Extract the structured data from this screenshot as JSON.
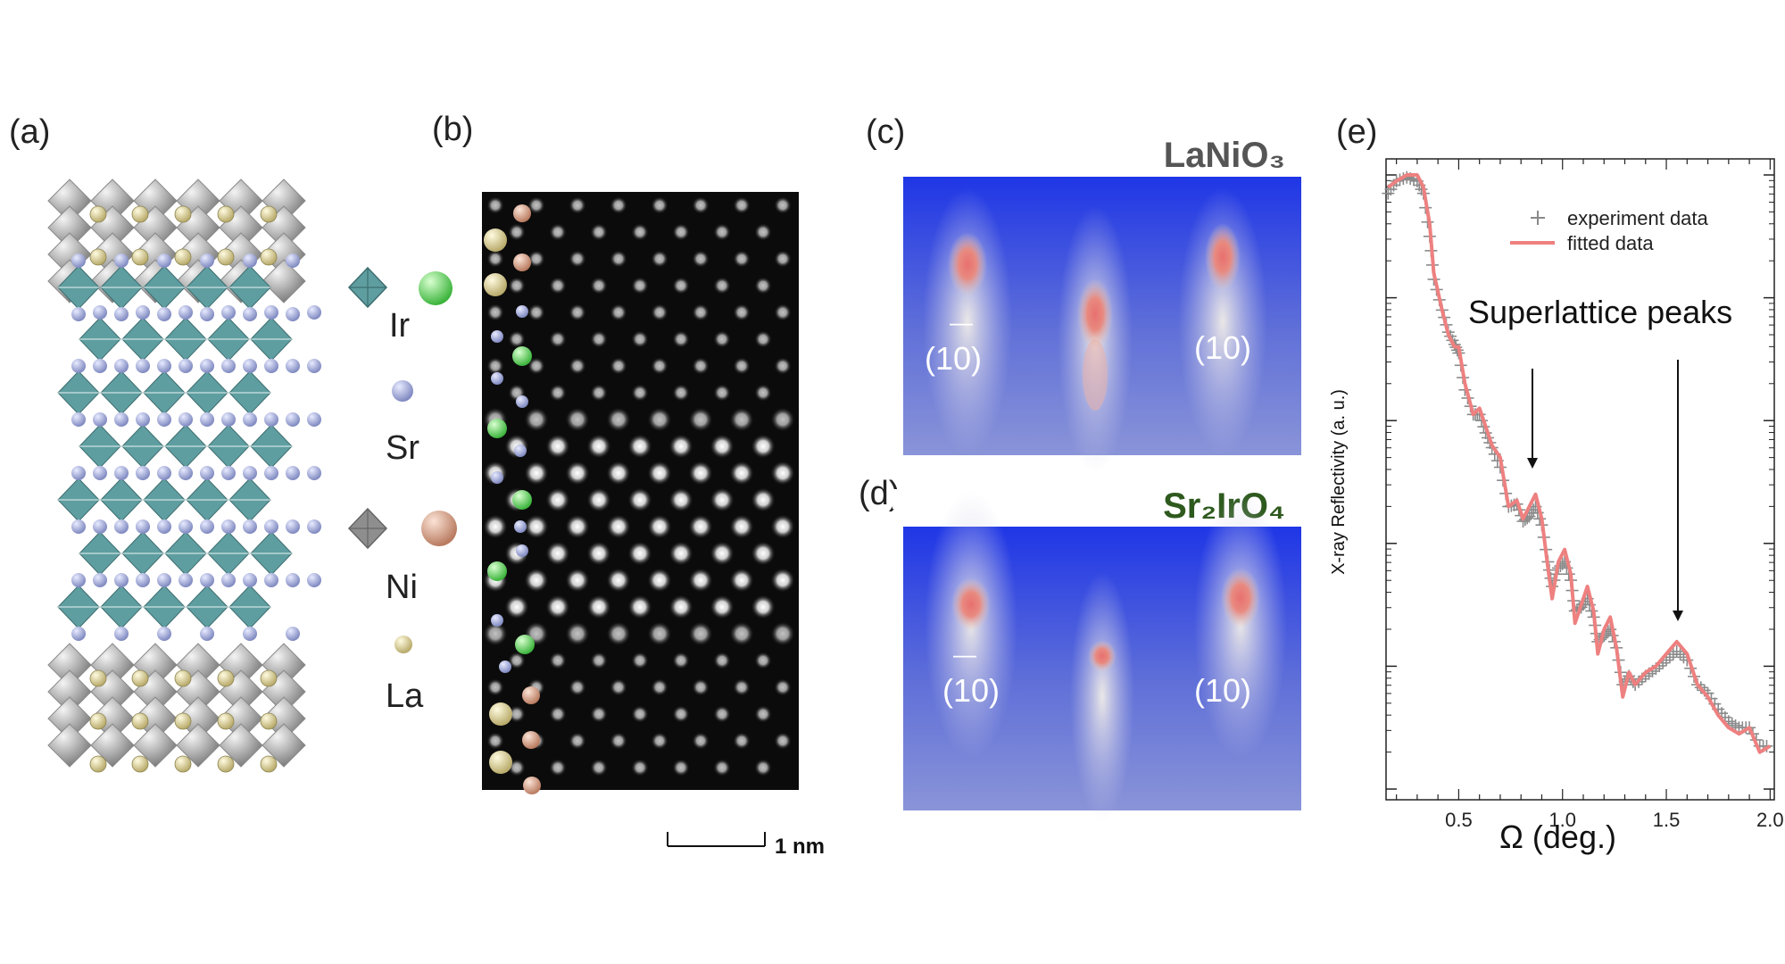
{
  "panels": {
    "a": {
      "label": "(a)"
    },
    "b": {
      "label": "(b)",
      "scalebar": "1 nm"
    },
    "c": {
      "label": "(c)",
      "material": "LaNiO₃",
      "miller_left": "(10)",
      "miller_right": "(10)",
      "left_bar": "—"
    },
    "d": {
      "label": "(d)",
      "material": "Sr₂IrO₄",
      "miller_left": "(10)",
      "miller_right": "(10)",
      "left_bar": "—"
    },
    "e": {
      "label": "(e)"
    }
  },
  "legend_elements": [
    "Ir",
    "Sr",
    "Ni",
    "La"
  ],
  "colors": {
    "ir_octahedron": "#5f9ea0",
    "ni_octahedron": "#9a9a9a",
    "ir_atom": "#5fd35f",
    "sr_atom": "#9aa3d6",
    "ni_atom": "#d9a088",
    "la_atom": "#d8cf98",
    "rheed_bg": "#2a3ed8",
    "fit_line": "#ee8080",
    "exp_marker": "#8a8a8a",
    "title_c": "#555555",
    "title_d": "#2e5a1e"
  },
  "chart_data": {
    "type": "line",
    "title": "",
    "annotation": "Superlattice peaks",
    "xlabel": "Ω (deg.)",
    "ylabel": "X-ray Reflectivity (a. u.)",
    "xlim": [
      0.15,
      2.02
    ],
    "xticks": [
      "0.5",
      "1.0",
      "1.5",
      "2.0"
    ],
    "yscale": "log",
    "ylim_decades": [
      0,
      5
    ],
    "legend": [
      "experiment data",
      "fitted data"
    ],
    "legend_placement": "top-right",
    "peaks_marked_at": [
      0.87,
      1.55
    ],
    "series": [
      {
        "name": "fitted data",
        "x": [
          0.16,
          0.2,
          0.25,
          0.3,
          0.33,
          0.36,
          0.38,
          0.42,
          0.45,
          0.48,
          0.5,
          0.53,
          0.57,
          0.6,
          0.63,
          0.66,
          0.7,
          0.74,
          0.78,
          0.81,
          0.84,
          0.87,
          0.9,
          0.93,
          0.95,
          0.98,
          1.01,
          1.04,
          1.06,
          1.09,
          1.12,
          1.15,
          1.17,
          1.2,
          1.23,
          1.26,
          1.29,
          1.32,
          1.35,
          1.4,
          1.45,
          1.5,
          1.55,
          1.6,
          1.65,
          1.7,
          1.75,
          1.8,
          1.85,
          1.9,
          1.95,
          2.0
        ],
        "y": [
          4.9,
          4.95,
          5.0,
          5.0,
          4.9,
          4.6,
          4.2,
          3.9,
          3.7,
          3.6,
          3.6,
          3.3,
          3.05,
          3.1,
          2.95,
          2.8,
          2.7,
          2.3,
          2.35,
          2.2,
          2.3,
          2.4,
          2.2,
          1.8,
          1.55,
          1.85,
          1.95,
          1.75,
          1.35,
          1.5,
          1.65,
          1.45,
          1.1,
          1.3,
          1.4,
          1.15,
          0.75,
          0.95,
          0.85,
          0.95,
          1.0,
          1.1,
          1.2,
          1.1,
          0.85,
          0.75,
          0.6,
          0.5,
          0.45,
          0.5,
          0.3,
          0.35
        ]
      },
      {
        "name": "experiment data",
        "x": [
          0.16,
          0.2,
          0.25,
          0.3,
          0.33,
          0.36,
          0.38,
          0.42,
          0.45,
          0.48,
          0.5,
          0.53,
          0.57,
          0.6,
          0.63,
          0.66,
          0.7,
          0.74,
          0.78,
          0.81,
          0.84,
          0.87,
          0.9,
          0.93,
          0.95,
          0.98,
          1.01,
          1.04,
          1.06,
          1.09,
          1.12,
          1.15,
          1.17,
          1.2,
          1.23,
          1.26,
          1.29,
          1.32,
          1.35,
          1.4,
          1.45,
          1.5,
          1.55,
          1.6,
          1.65,
          1.7,
          1.75,
          1.8,
          1.85,
          1.9,
          1.95,
          2.0
        ],
        "y": [
          4.85,
          4.95,
          4.98,
          4.95,
          4.85,
          4.5,
          4.15,
          3.9,
          3.72,
          3.62,
          3.55,
          3.25,
          3.05,
          3.05,
          2.9,
          2.78,
          2.62,
          2.3,
          2.32,
          2.18,
          2.22,
          2.3,
          2.15,
          1.85,
          1.65,
          1.8,
          1.85,
          1.7,
          1.45,
          1.48,
          1.55,
          1.4,
          1.2,
          1.25,
          1.3,
          1.15,
          0.85,
          0.92,
          0.85,
          0.92,
          0.98,
          1.05,
          1.12,
          1.05,
          0.85,
          0.78,
          0.65,
          0.55,
          0.5,
          0.5,
          0.35,
          0.35
        ]
      }
    ]
  }
}
